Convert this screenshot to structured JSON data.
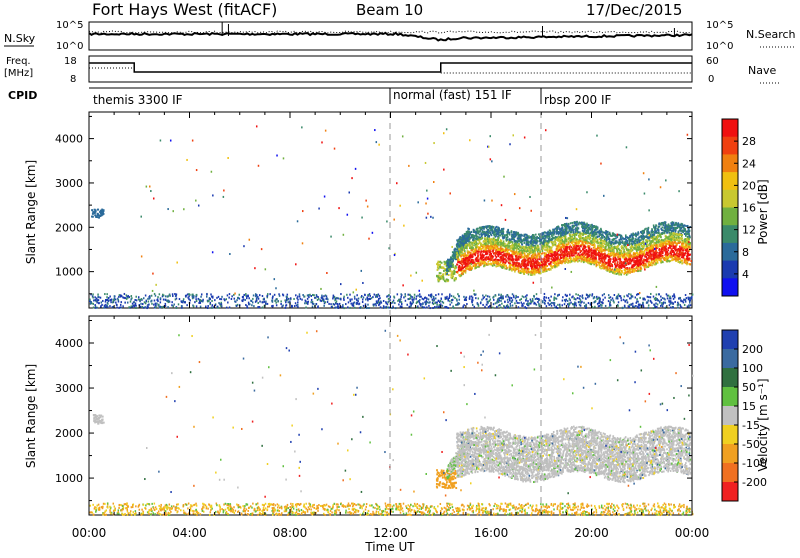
{
  "header": {
    "station": "Fort Hays West (fitACF)",
    "beam": "Beam 10",
    "date": "17/Dec/2015"
  },
  "top_panels": {
    "nsky": {
      "label": "N.Sky",
      "ticks": [
        "10^5",
        "10^0"
      ],
      "right_label": "N.Search",
      "right_ticks": [
        "10^5",
        "10^0"
      ]
    },
    "freq": {
      "label_line1": "Freq.",
      "label_line2": "[MHz]",
      "ticks": [
        "18",
        "8"
      ],
      "right_label": "Nave",
      "right_ticks": [
        "60",
        "0"
      ]
    },
    "cpid": {
      "label": "CPID",
      "segments": [
        {
          "start_hour": 0,
          "end_hour": 12,
          "label": "themis 3300 IF"
        },
        {
          "start_hour": 12,
          "end_hour": 18,
          "label": "normal (fast) 151 IF"
        },
        {
          "start_hour": 18,
          "end_hour": 24,
          "label": "rbsp 200 IF"
        }
      ]
    }
  },
  "power_colorbar": {
    "label": "Power [dB]",
    "ticks": [
      "28",
      "24",
      "20",
      "16",
      "12",
      "8",
      "4"
    ],
    "colors": [
      "#f01010",
      "#f04010",
      "#f08010",
      "#f0c010",
      "#c8c830",
      "#70b040",
      "#3a8a6a",
      "#2a6a9a",
      "#1a3ab0",
      "#1010f0"
    ]
  },
  "velocity_colorbar": {
    "label": "Velocity [m s⁻¹]",
    "ticks": [
      "200",
      "100",
      "50",
      "15",
      "-15",
      "-50",
      "-100",
      "-200"
    ],
    "colors": [
      "#2040b0",
      "#3a6aa0",
      "#307040",
      "#60c040",
      "#c0c0c0",
      "#f0d020",
      "#f0a020",
      "#f07020",
      "#f02020"
    ]
  },
  "chart_data": [
    {
      "type": "heatmap",
      "name": "power",
      "ylabel": "Slant Range [km]",
      "xlabel": "Time UT",
      "xlim_hours": [
        0,
        24
      ],
      "x_ticks": [
        "00:00",
        "04:00",
        "08:00",
        "12:00",
        "16:00",
        "20:00",
        "00:00"
      ],
      "ylim": [
        180,
        4600
      ],
      "y_ticks": [
        1000,
        2000,
        3000,
        4000
      ],
      "mode_change_hours": [
        12,
        18
      ],
      "regions": [
        {
          "t0": 0.05,
          "t1": 0.55,
          "r0": 2200,
          "r1": 2450,
          "value": "low-mid"
        },
        {
          "t0": 0,
          "t1": 24,
          "r0": 200,
          "r1": 500,
          "value": "low"
        },
        {
          "t0": 13.8,
          "t1": 14.5,
          "r0": 800,
          "r1": 1200,
          "value": "mid"
        },
        {
          "t0": 14.3,
          "t1": 23.9,
          "r0": 1000,
          "r1": 2200,
          "value": "high"
        }
      ]
    },
    {
      "type": "heatmap",
      "name": "velocity",
      "ylabel": "Slant Range [km]",
      "xlabel": "Time UT",
      "xlim_hours": [
        0,
        24
      ],
      "x_ticks": [
        "00:00",
        "04:00",
        "08:00",
        "12:00",
        "16:00",
        "20:00",
        "00:00"
      ],
      "ylim": [
        180,
        4600
      ],
      "y_ticks": [
        1000,
        2000,
        3000,
        4000
      ],
      "regions": [
        {
          "t0": 0,
          "t1": 24,
          "r0": 200,
          "r1": 500,
          "value": "-50"
        },
        {
          "t0": 13.8,
          "t1": 14.5,
          "r0": 800,
          "r1": 1200,
          "value": "-100"
        },
        {
          "t0": 14.3,
          "t1": 23.9,
          "r0": 1000,
          "r1": 2200,
          "value": "0"
        }
      ]
    }
  ]
}
